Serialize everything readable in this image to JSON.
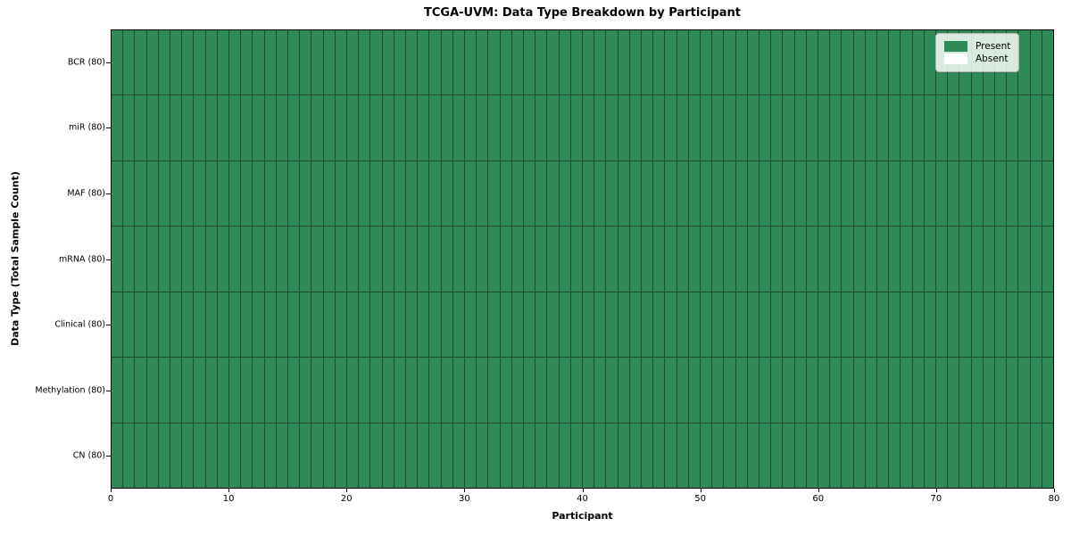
{
  "chart_data": {
    "type": "heatmap",
    "title": "TCGA-UVM: Data Type Breakdown by Participant",
    "xlabel": "Participant",
    "ylabel": "Data Type (Total Sample Count)",
    "xlim": [
      0,
      80
    ],
    "x_ticks": [
      0,
      10,
      20,
      30,
      40,
      50,
      60,
      70,
      80
    ],
    "n_participants": 80,
    "rows": [
      {
        "label": "BCR (80)",
        "data_type": "BCR",
        "total_sample_count": 80,
        "present_count": 80,
        "absent_count": 0
      },
      {
        "label": "miR (80)",
        "data_type": "miR",
        "total_sample_count": 80,
        "present_count": 80,
        "absent_count": 0
      },
      {
        "label": "MAF (80)",
        "data_type": "MAF",
        "total_sample_count": 80,
        "present_count": 80,
        "absent_count": 0
      },
      {
        "label": "mRNA (80)",
        "data_type": "mRNA",
        "total_sample_count": 80,
        "present_count": 80,
        "absent_count": 0
      },
      {
        "label": "Clinical (80)",
        "data_type": "Clinical",
        "total_sample_count": 80,
        "present_count": 80,
        "absent_count": 0
      },
      {
        "label": "Methylation (80)",
        "data_type": "Methylation",
        "total_sample_count": 80,
        "present_count": 80,
        "absent_count": 0
      },
      {
        "label": "CN (80)",
        "data_type": "CN",
        "total_sample_count": 80,
        "present_count": 80,
        "absent_count": 0
      }
    ],
    "all_cells_present": true,
    "legend": [
      {
        "label": "Present",
        "color": "#2e8b57"
      },
      {
        "label": "Absent",
        "color": "#ffffff"
      }
    ],
    "legend_position": "upper right",
    "colors": {
      "present": "#2e8b57",
      "absent": "#ffffff",
      "cell_edge": "#224a33",
      "frame": "#000000",
      "background": "#ffffff"
    },
    "grid": false
  }
}
